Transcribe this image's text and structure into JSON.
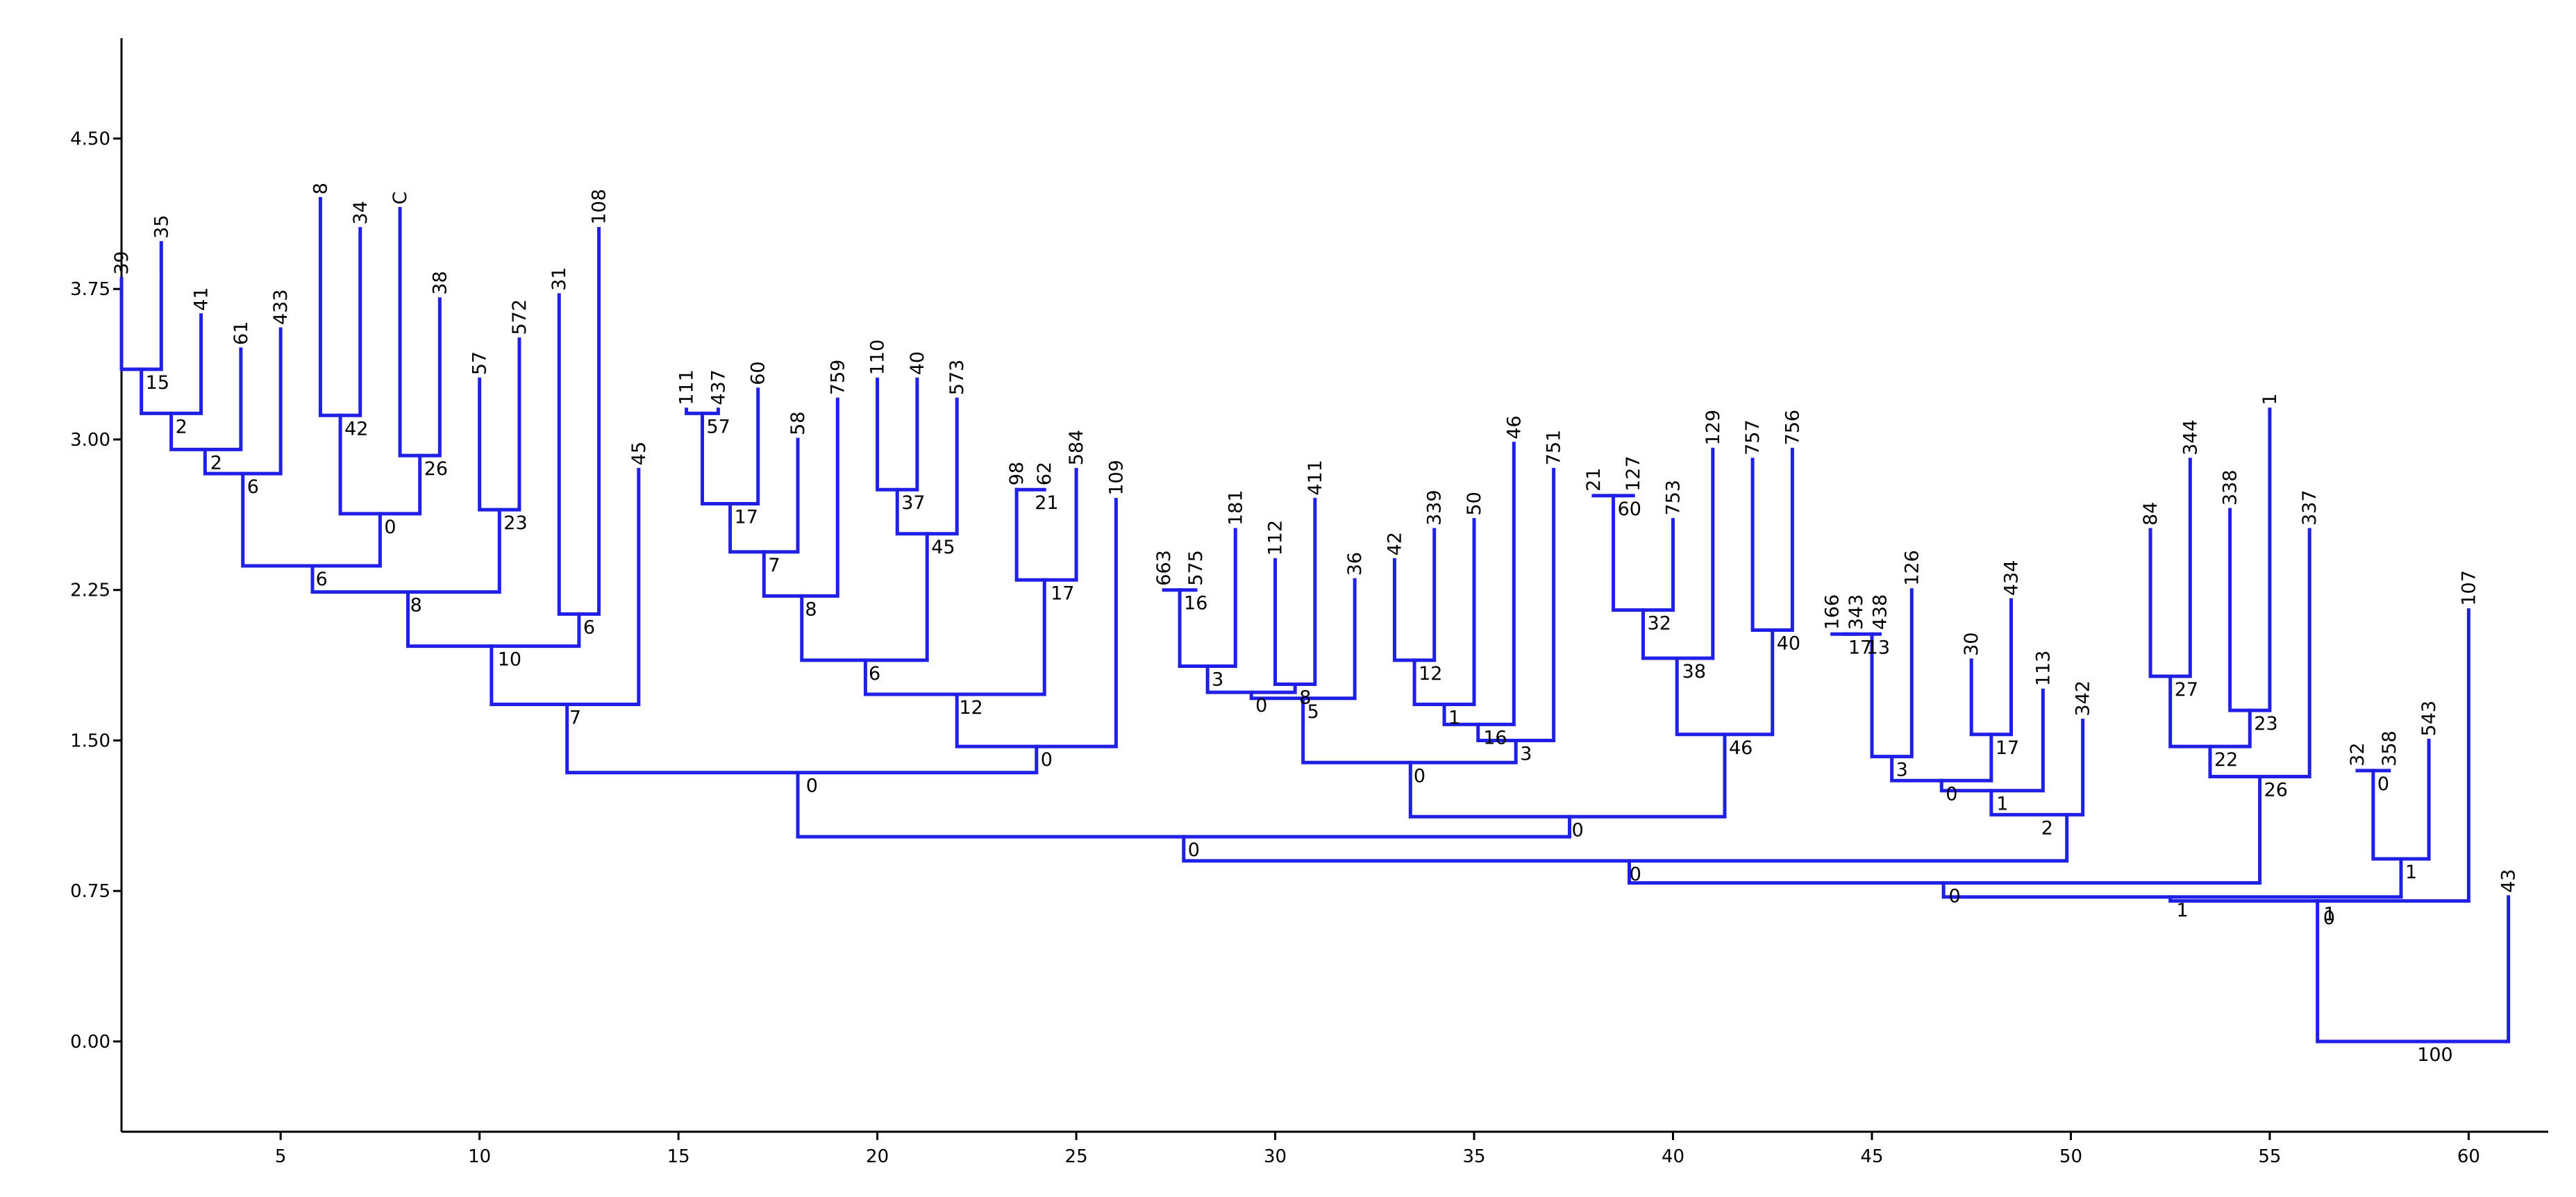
{
  "chart_data": {
    "type": "dendrogram",
    "title": "",
    "xlabel": "",
    "ylabel": "",
    "xlim": [
      1,
      62
    ],
    "ylim": [
      -0.45,
      5.0
    ],
    "x_ticks": [
      5,
      10,
      15,
      20,
      25,
      30,
      35,
      40,
      45,
      50,
      55,
      60
    ],
    "y_ticks": [
      0.0,
      0.75,
      1.5,
      2.25,
      3.0,
      3.75,
      4.5
    ],
    "y_tick_labels": [
      "0.00",
      "0.75",
      "1.50",
      "2.25",
      "3.00",
      "3.75",
      "4.50"
    ],
    "line_color": "#1f1fe6",
    "leaves": [
      {
        "label": "39",
        "x": 1.0,
        "y": 3.8
      },
      {
        "label": "35",
        "x": 2.0,
        "y": 3.98
      },
      {
        "label": "41",
        "x": 3.0,
        "y": 3.62
      },
      {
        "label": "61",
        "x": 4.0,
        "y": 3.45
      },
      {
        "label": "433",
        "x": 5.0,
        "y": 3.55
      },
      {
        "label": "8",
        "x": 6.0,
        "y": 4.2
      },
      {
        "label": "34",
        "x": 7.0,
        "y": 4.05
      },
      {
        "label": "C",
        "x": 8.0,
        "y": 4.15
      },
      {
        "label": "38",
        "x": 9.0,
        "y": 3.7
      },
      {
        "label": "57",
        "x": 10.0,
        "y": 3.3
      },
      {
        "label": "572",
        "x": 11.0,
        "y": 3.5
      },
      {
        "label": "31",
        "x": 12.0,
        "y": 3.72
      },
      {
        "label": "108",
        "x": 13.0,
        "y": 4.05
      },
      {
        "label": "45",
        "x": 14.0,
        "y": 2.85
      },
      {
        "label": "111",
        "x": 15.2,
        "y": 3.15
      },
      {
        "label": "437",
        "x": 16.0,
        "y": 3.15
      },
      {
        "label": "60",
        "x": 17.0,
        "y": 3.25
      },
      {
        "label": "58",
        "x": 18.0,
        "y": 3.0
      },
      {
        "label": "759",
        "x": 19.0,
        "y": 3.2
      },
      {
        "label": "110",
        "x": 20.0,
        "y": 3.3
      },
      {
        "label": "40",
        "x": 21.0,
        "y": 3.3
      },
      {
        "label": "573",
        "x": 22.0,
        "y": 3.2
      },
      {
        "label": "98",
        "x": 23.5,
        "y": 2.75
      },
      {
        "label": "62",
        "x": 24.2,
        "y": 2.75
      },
      {
        "label": "584",
        "x": 25.0,
        "y": 2.85
      },
      {
        "label": "109",
        "x": 26.0,
        "y": 2.7
      },
      {
        "label": "663",
        "x": 27.2,
        "y": 2.25
      },
      {
        "label": "575",
        "x": 28.0,
        "y": 2.25
      },
      {
        "label": "181",
        "x": 29.0,
        "y": 2.55
      },
      {
        "label": "112",
        "x": 30.0,
        "y": 2.4
      },
      {
        "label": "411",
        "x": 31.0,
        "y": 2.7
      },
      {
        "label": "36",
        "x": 32.0,
        "y": 2.3
      },
      {
        "label": "42",
        "x": 33.0,
        "y": 2.4
      },
      {
        "label": "339",
        "x": 34.0,
        "y": 2.55
      },
      {
        "label": "50",
        "x": 35.0,
        "y": 2.6
      },
      {
        "label": "46",
        "x": 36.0,
        "y": 2.98
      },
      {
        "label": "751",
        "x": 37.0,
        "y": 2.85
      },
      {
        "label": "21",
        "x": 38.0,
        "y": 2.72
      },
      {
        "label": "127",
        "x": 39.0,
        "y": 2.72
      },
      {
        "label": "753",
        "x": 40.0,
        "y": 2.6
      },
      {
        "label": "129",
        "x": 41.0,
        "y": 2.95
      },
      {
        "label": "757",
        "x": 42.0,
        "y": 2.9
      },
      {
        "label": "756",
        "x": 43.0,
        "y": 2.95
      },
      {
        "label": "166",
        "x": 44.0,
        "y": 2.03
      },
      {
        "label": "343",
        "x": 44.6,
        "y": 2.03
      },
      {
        "label": "438",
        "x": 45.2,
        "y": 2.03
      },
      {
        "label": "126",
        "x": 46.0,
        "y": 2.25
      },
      {
        "label": "30",
        "x": 47.5,
        "y": 1.9
      },
      {
        "label": "434",
        "x": 48.5,
        "y": 2.2
      },
      {
        "label": "113",
        "x": 49.3,
        "y": 1.75
      },
      {
        "label": "342",
        "x": 50.3,
        "y": 1.6
      },
      {
        "label": "84",
        "x": 52.0,
        "y": 2.55
      },
      {
        "label": "344",
        "x": 53.0,
        "y": 2.9
      },
      {
        "label": "338",
        "x": 54.0,
        "y": 2.65
      },
      {
        "label": "1",
        "x": 55.0,
        "y": 3.15
      },
      {
        "label": "337",
        "x": 56.0,
        "y": 2.55
      },
      {
        "label": "32",
        "x": 57.2,
        "y": 1.35
      },
      {
        "label": "358",
        "x": 58.0,
        "y": 1.35
      },
      {
        "label": "543",
        "x": 59.0,
        "y": 1.5
      },
      {
        "label": "107",
        "x": 60.0,
        "y": 2.15
      },
      {
        "label": "43",
        "x": 61.0,
        "y": 0.72
      }
    ],
    "links": [
      {
        "x1": 1.0,
        "x2": 2.0,
        "y": 3.35,
        "left_y": 3.8,
        "right_y": 3.98,
        "label": "15"
      },
      {
        "x1": 1.5,
        "x2": 3.0,
        "y": 3.13,
        "left_y": 3.35,
        "right_y": 3.62,
        "label": "2"
      },
      {
        "x1": 2.25,
        "x2": 4.0,
        "y": 2.95,
        "left_y": 3.13,
        "right_y": 3.45,
        "label": "2"
      },
      {
        "x1": 3.1,
        "x2": 5.0,
        "y": 2.83,
        "left_y": 2.95,
        "right_y": 3.55,
        "label": "6"
      },
      {
        "x1": 6.0,
        "x2": 7.0,
        "y": 3.12,
        "left_y": 4.2,
        "right_y": 4.05,
        "label": "42"
      },
      {
        "x1": 8.0,
        "x2": 9.0,
        "y": 2.92,
        "left_y": 4.15,
        "right_y": 3.7,
        "label": "26"
      },
      {
        "x1": 6.5,
        "x2": 8.5,
        "y": 2.63,
        "left_y": 3.12,
        "right_y": 2.92,
        "label": "0"
      },
      {
        "x1": 4.05,
        "x2": 7.5,
        "y": 2.37,
        "left_y": 2.83,
        "right_y": 2.63,
        "label": "6"
      },
      {
        "x1": 10.0,
        "x2": 11.0,
        "y": 2.65,
        "left_y": 3.3,
        "right_y": 3.5,
        "label": "23"
      },
      {
        "x1": 5.8,
        "x2": 10.5,
        "y": 2.24,
        "left_y": 2.37,
        "right_y": 2.65,
        "label": "8"
      },
      {
        "x1": 12.0,
        "x2": 13.0,
        "y": 2.13,
        "left_y": 3.72,
        "right_y": 4.05,
        "label": "6"
      },
      {
        "x1": 8.2,
        "x2": 12.5,
        "y": 1.97,
        "left_y": 2.24,
        "right_y": 2.13,
        "label": "10"
      },
      {
        "x1": 10.3,
        "x2": 14.0,
        "y": 1.68,
        "left_y": 1.97,
        "right_y": 2.85,
        "label": "7"
      },
      {
        "x1": 15.2,
        "x2": 16.0,
        "y": 3.13,
        "left_y": 3.15,
        "right_y": 3.15,
        "label": "57"
      },
      {
        "x1": 15.6,
        "x2": 17.0,
        "y": 2.68,
        "left_y": 3.13,
        "right_y": 3.25,
        "label": "17"
      },
      {
        "x1": 16.3,
        "x2": 18.0,
        "y": 2.44,
        "left_y": 2.68,
        "right_y": 3.0,
        "label": "7"
      },
      {
        "x1": 17.15,
        "x2": 19.0,
        "y": 2.22,
        "left_y": 2.44,
        "right_y": 3.2,
        "label": "8"
      },
      {
        "x1": 20.0,
        "x2": 21.0,
        "y": 2.75,
        "left_y": 3.3,
        "right_y": 3.3,
        "label": "37"
      },
      {
        "x1": 20.5,
        "x2": 22.0,
        "y": 2.53,
        "left_y": 2.75,
        "right_y": 3.2,
        "label": "45"
      },
      {
        "x1": 18.1,
        "x2": 21.25,
        "y": 1.9,
        "left_y": 2.22,
        "right_y": 2.53,
        "label": "6"
      },
      {
        "x1": 23.5,
        "x2": 24.2,
        "y": 2.75,
        "left_y": 2.75,
        "right_y": 2.75,
        "label": "21"
      },
      {
        "x1": 23.5,
        "x2": 25.0,
        "y": 2.3,
        "left_y": 2.75,
        "right_y": 2.85,
        "label": "17"
      },
      {
        "x1": 19.7,
        "x2": 24.2,
        "y": 1.73,
        "left_y": 1.9,
        "right_y": 2.3,
        "label": "12"
      },
      {
        "x1": 22.0,
        "x2": 26.0,
        "y": 1.47,
        "left_y": 1.73,
        "right_y": 2.7,
        "label": "0"
      },
      {
        "x1": 12.2,
        "x2": 24.0,
        "y": 1.34,
        "left_y": 1.68,
        "right_y": 1.47,
        "label": "0"
      },
      {
        "x1": 27.2,
        "x2": 28.0,
        "y": 2.25,
        "left_y": 2.25,
        "right_y": 2.25,
        "label": "16"
      },
      {
        "x1": 27.6,
        "x2": 29.0,
        "y": 1.87,
        "left_y": 2.25,
        "right_y": 2.55,
        "label": "3"
      },
      {
        "x1": 30.0,
        "x2": 31.0,
        "y": 1.78,
        "left_y": 2.4,
        "right_y": 2.7,
        "label": "8"
      },
      {
        "x1": 28.3,
        "x2": 30.5,
        "y": 1.74,
        "left_y": 1.87,
        "right_y": 1.78,
        "label": "0"
      },
      {
        "x1": 29.4,
        "x2": 32.0,
        "y": 1.71,
        "left_y": 1.74,
        "right_y": 2.3,
        "label": "5"
      },
      {
        "x1": 33.0,
        "x2": 34.0,
        "y": 1.9,
        "left_y": 2.4,
        "right_y": 2.55,
        "label": "12"
      },
      {
        "x1": 33.5,
        "x2": 35.0,
        "y": 1.68,
        "left_y": 1.9,
        "right_y": 2.6,
        "label": "1"
      },
      {
        "x1": 34.25,
        "x2": 36.0,
        "y": 1.58,
        "left_y": 1.68,
        "right_y": 2.98,
        "label": "16"
      },
      {
        "x1": 35.1,
        "x2": 37.0,
        "y": 1.5,
        "left_y": 1.58,
        "right_y": 2.85,
        "label": "3"
      },
      {
        "x1": 30.7,
        "x2": 36.05,
        "y": 1.39,
        "left_y": 1.71,
        "right_y": 1.5,
        "label": "0"
      },
      {
        "x1": 38.0,
        "x2": 39.0,
        "y": 2.72,
        "left_y": 2.72,
        "right_y": 2.72,
        "label": "60"
      },
      {
        "x1": 38.5,
        "x2": 40.0,
        "y": 2.15,
        "left_y": 2.72,
        "right_y": 2.6,
        "label": "32"
      },
      {
        "x1": 39.25,
        "x2": 41.0,
        "y": 1.91,
        "left_y": 2.15,
        "right_y": 2.95,
        "label": "38"
      },
      {
        "x1": 42.0,
        "x2": 43.0,
        "y": 2.05,
        "left_y": 2.9,
        "right_y": 2.95,
        "label": "40"
      },
      {
        "x1": 40.1,
        "x2": 42.5,
        "y": 1.53,
        "left_y": 1.91,
        "right_y": 2.05,
        "label": "46"
      },
      {
        "x1": 33.4,
        "x2": 41.3,
        "y": 1.12,
        "left_y": 1.39,
        "right_y": 1.53,
        "label": "0"
      },
      {
        "x1": 18.0,
        "x2": 37.4,
        "y": 1.02,
        "left_y": 1.34,
        "right_y": 1.12,
        "label": "0"
      },
      {
        "x1": 44.0,
        "x2": 44.6,
        "y": 2.03,
        "left_y": 2.03,
        "right_y": 2.03,
        "label": "17"
      },
      {
        "x1": 44.3,
        "x2": 45.2,
        "y": 2.03,
        "left_y": 2.03,
        "right_y": 2.03,
        "label": "13"
      },
      {
        "x1": 45.0,
        "x2": 46.0,
        "y": 1.42,
        "left_y": 2.03,
        "right_y": 2.25,
        "label": "3"
      },
      {
        "x1": 47.5,
        "x2": 48.5,
        "y": 1.53,
        "left_y": 1.9,
        "right_y": 2.2,
        "label": "17"
      },
      {
        "x1": 45.5,
        "x2": 48.0,
        "y": 1.3,
        "left_y": 1.42,
        "right_y": 1.53,
        "label": "0"
      },
      {
        "x1": 46.75,
        "x2": 49.3,
        "y": 1.25,
        "left_y": 1.3,
        "right_y": 1.75,
        "label": "1"
      },
      {
        "x1": 48.0,
        "x2": 50.3,
        "y": 1.13,
        "left_y": 1.25,
        "right_y": 1.6,
        "label": "2"
      },
      {
        "x1": 27.7,
        "x2": 49.9,
        "y": 0.9,
        "left_y": 1.02,
        "right_y": 1.13,
        "label": "0"
      },
      {
        "x1": 52.0,
        "x2": 53.0,
        "y": 1.82,
        "left_y": 2.55,
        "right_y": 2.9,
        "label": "27"
      },
      {
        "x1": 54.0,
        "x2": 55.0,
        "y": 1.65,
        "left_y": 2.65,
        "right_y": 3.15,
        "label": "23"
      },
      {
        "x1": 52.5,
        "x2": 54.5,
        "y": 1.47,
        "left_y": 1.82,
        "right_y": 1.65,
        "label": "22"
      },
      {
        "x1": 53.5,
        "x2": 56.0,
        "y": 1.32,
        "left_y": 1.47,
        "right_y": 2.55,
        "label": "26"
      },
      {
        "x1": 38.9,
        "x2": 54.75,
        "y": 0.79,
        "left_y": 0.9,
        "right_y": 1.32,
        "label": "0"
      },
      {
        "x1": 57.2,
        "x2": 58.0,
        "y": 1.35,
        "left_y": 1.35,
        "right_y": 1.35,
        "label": "0"
      },
      {
        "x1": 57.6,
        "x2": 59.0,
        "y": 0.91,
        "left_y": 1.35,
        "right_y": 1.5,
        "label": "1"
      },
      {
        "x1": 46.8,
        "x2": 58.3,
        "y": 0.72,
        "left_y": 0.79,
        "right_y": 0.91,
        "label": "1"
      },
      {
        "x1": 52.5,
        "x2": 60.0,
        "y": 0.7,
        "left_y": 0.72,
        "right_y": 2.15,
        "label": "1"
      },
      {
        "x1": 56.2,
        "x2": 61.0,
        "y": 0.0,
        "left_y": 0.7,
        "right_y": 0.72,
        "label": "100"
      }
    ],
    "extra_node_labels": [
      {
        "label": "0",
        "x": 56.2,
        "y": 0.62
      }
    ]
  }
}
